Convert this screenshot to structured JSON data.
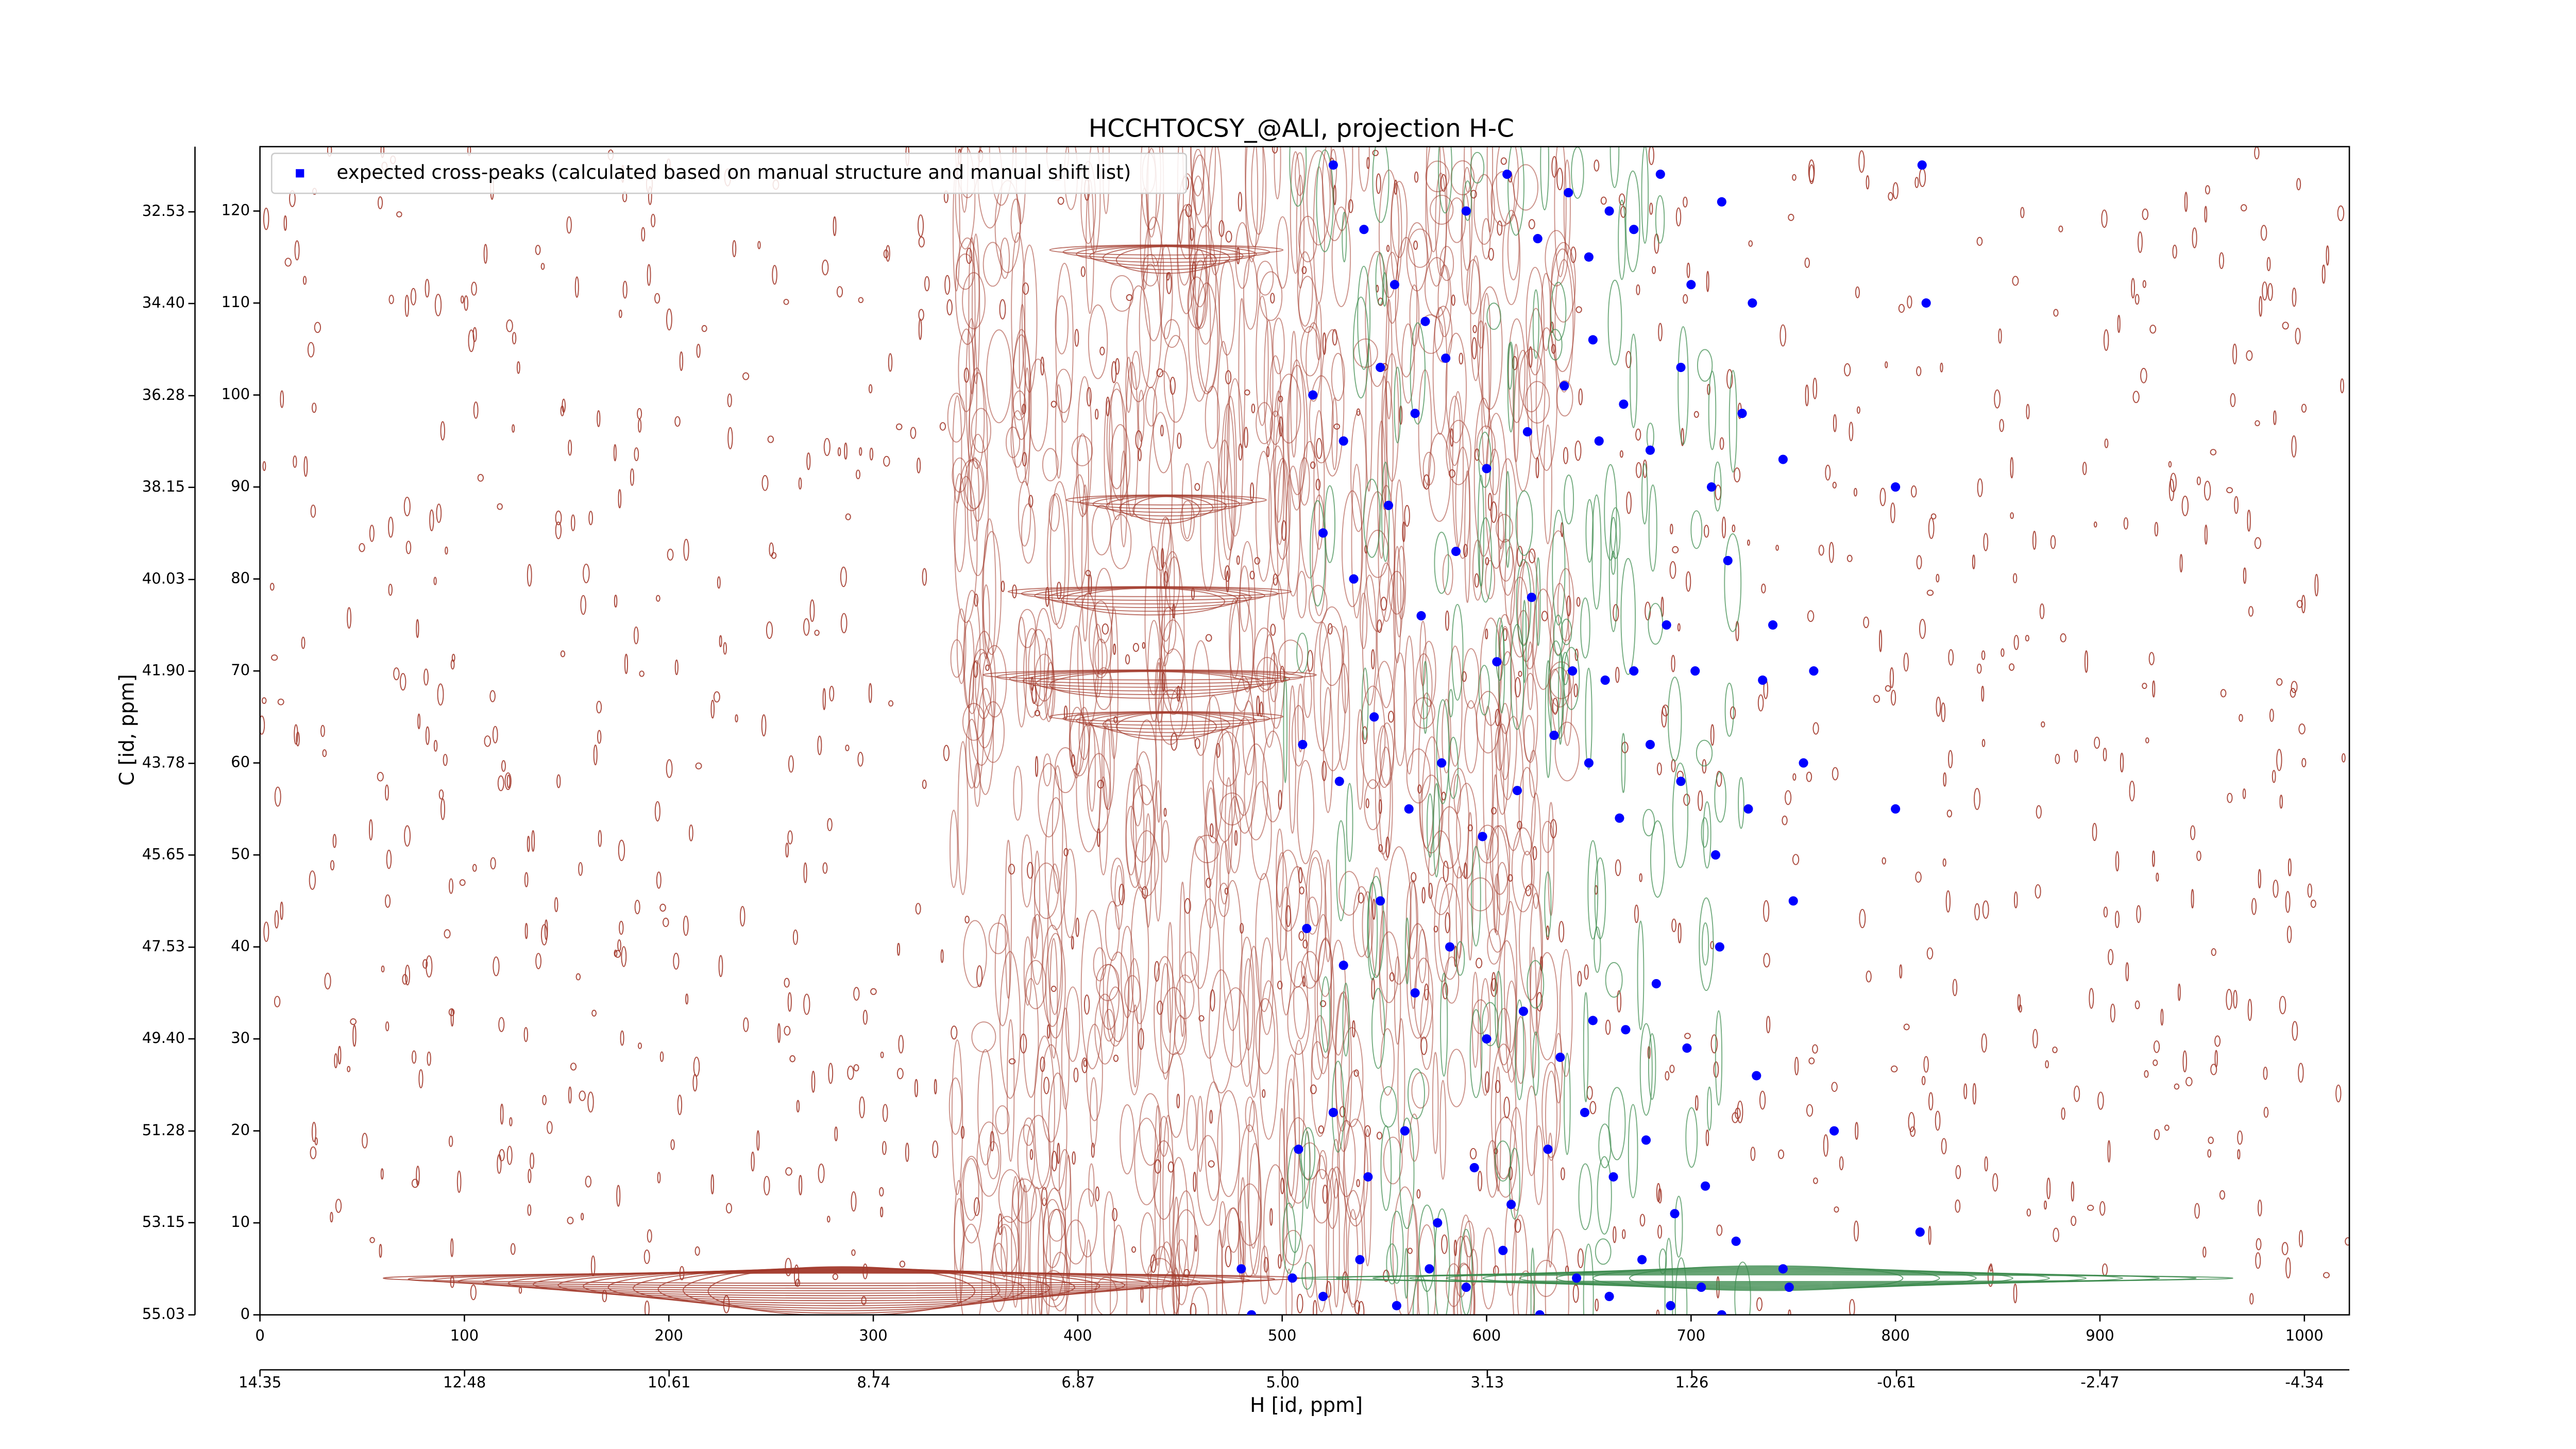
{
  "chart_data": {
    "type": "scatter",
    "title": "HCCHTOCSY_@ALI, projection H-C",
    "x_label": "H [id, ppm]",
    "y_label": "C [id, ppm]",
    "xlim": [
      0,
      1022
    ],
    "xticks": [
      0,
      100,
      200,
      300,
      400,
      500,
      600,
      700,
      800,
      900,
      1000
    ],
    "ylim": [
      0,
      127
    ],
    "yticks": [
      0,
      10,
      20,
      30,
      40,
      50,
      60,
      70,
      80,
      90,
      100,
      110,
      120
    ],
    "x2lim": [
      14.35,
      -4.75
    ],
    "x2ticks": [
      14.35,
      12.48,
      10.61,
      8.74,
      6.87,
      {
        "value": 5,
        "label": "5.00"
      },
      3.13,
      1.26,
      -0.61,
      -2.47,
      -4.34
    ],
    "y2lim": [
      55.03,
      31.2
    ],
    "y2ticks": [
      55.03,
      53.15,
      51.28,
      {
        "value": 49.4,
        "label": "49.40"
      },
      47.53,
      45.65,
      43.78,
      {
        "value": 41.9,
        "label": "41.90"
      },
      40.03,
      38.15,
      36.28,
      {
        "value": 34.4,
        "label": "34.40"
      },
      32.53
    ],
    "legend": "upper left",
    "series": [
      {
        "name": "expected cross-peaks (calculated based on manual structure and manual shift list)",
        "color": "#0000ff",
        "x": [
          525,
          540,
          555,
          570,
          590,
          610,
          625,
          640,
          650,
          660,
          672,
          685,
          700,
          715,
          730,
          515,
          530,
          548,
          565,
          580,
          600,
          620,
          638,
          652,
          667,
          680,
          695,
          710,
          725,
          745,
          520,
          535,
          552,
          568,
          585,
          605,
          622,
          642,
          658,
          672,
          688,
          702,
          718,
          735,
          760,
          510,
          528,
          545,
          562,
          578,
          598,
          615,
          633,
          650,
          665,
          680,
          695,
          712,
          728,
          750,
          512,
          530,
          548,
          565,
          582,
          600,
          618,
          636,
          652,
          668,
          683,
          698,
          714,
          732,
          770,
          508,
          525,
          542,
          560,
          576,
          594,
          612,
          630,
          648,
          662,
          678,
          692,
          707,
          722,
          745,
          505,
          520,
          538,
          556,
          572,
          590,
          608,
          626,
          644,
          660,
          676,
          690,
          705,
          715,
          748,
          813,
          815,
          800,
          812,
          485,
          800,
          480,
          755,
          740,
          655
        ],
        "values": [
          125,
          118,
          112,
          108,
          120,
          124,
          117,
          122,
          115,
          120,
          118,
          124,
          112,
          121,
          110,
          100,
          95,
          103,
          98,
          104,
          92,
          96,
          101,
          106,
          99,
          94,
          103,
          90,
          98,
          93,
          85,
          80,
          88,
          76,
          83,
          71,
          78,
          70,
          69,
          70,
          75,
          70,
          82,
          69,
          70,
          62,
          58,
          65,
          55,
          60,
          52,
          57,
          63,
          60,
          54,
          62,
          58,
          50,
          55,
          45,
          42,
          38,
          45,
          35,
          40,
          30,
          33,
          28,
          32,
          31,
          36,
          29,
          40,
          26,
          20,
          18,
          22,
          15,
          20,
          10,
          16,
          12,
          18,
          22,
          15,
          19,
          11,
          14,
          8,
          5,
          4,
          2,
          6,
          1,
          5,
          3,
          7,
          0,
          4,
          2,
          6,
          1,
          3,
          0,
          3,
          125,
          110,
          55,
          9,
          0,
          90,
          5,
          60,
          75,
          95
        ]
      }
    ]
  }
}
